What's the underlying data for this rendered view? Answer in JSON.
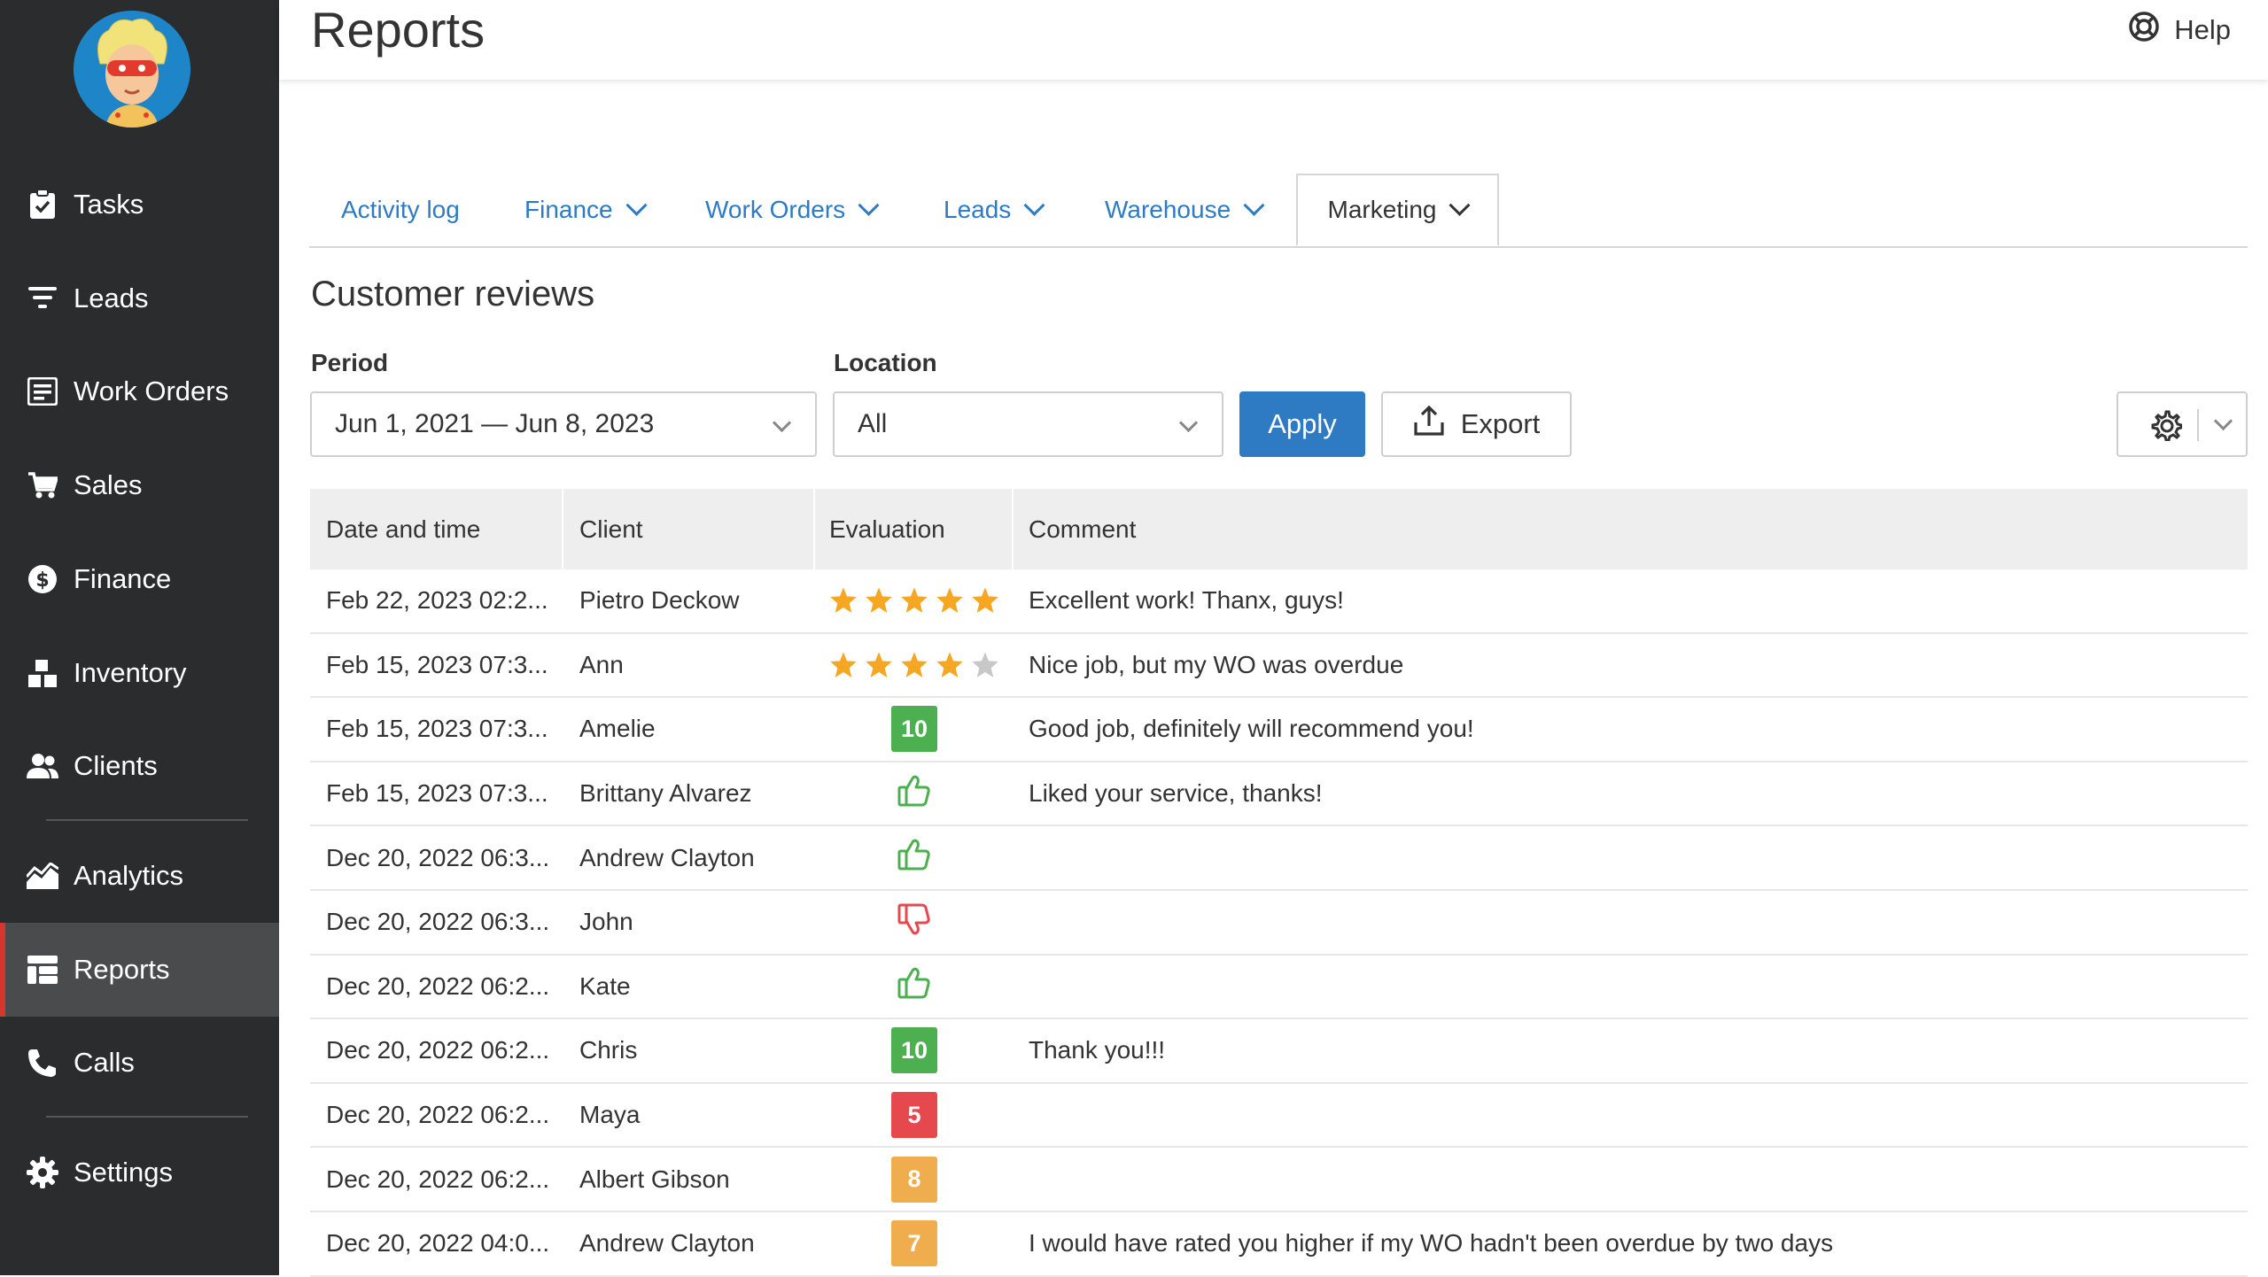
{
  "sidebar": {
    "items": [
      {
        "label": "Tasks",
        "icon": "clipboard-check-icon"
      },
      {
        "label": "Leads",
        "icon": "funnel-icon"
      },
      {
        "label": "Work Orders",
        "icon": "work-order-icon"
      },
      {
        "label": "Sales",
        "icon": "cart-icon"
      },
      {
        "label": "Finance",
        "icon": "dollar-icon"
      },
      {
        "label": "Inventory",
        "icon": "boxes-icon"
      },
      {
        "label": "Clients",
        "icon": "users-icon"
      },
      {
        "label": "Analytics",
        "icon": "chart-icon"
      },
      {
        "label": "Reports",
        "icon": "table-icon",
        "active": true
      },
      {
        "label": "Calls",
        "icon": "phone-icon"
      },
      {
        "label": "Settings",
        "icon": "gear-icon"
      }
    ]
  },
  "header": {
    "title": "Reports",
    "help_label": "Help",
    "help_icon": "lifebuoy-icon"
  },
  "tabs": [
    {
      "label": "Activity log",
      "dropdown": false
    },
    {
      "label": "Finance",
      "dropdown": true
    },
    {
      "label": "Work Orders",
      "dropdown": true
    },
    {
      "label": "Leads",
      "dropdown": true
    },
    {
      "label": "Warehouse",
      "dropdown": true
    },
    {
      "label": "Marketing",
      "dropdown": true,
      "active": true
    }
  ],
  "section": {
    "title": "Customer reviews"
  },
  "filters": {
    "period_label": "Period",
    "period_value": "Jun 1, 2021 — Jun 8, 2023",
    "location_label": "Location",
    "location_value": "All",
    "apply_label": "Apply",
    "export_label": "Export"
  },
  "colors": {
    "accent": "#2e7bc4",
    "score_green": "#4caf50",
    "score_red": "#e5484d",
    "score_orange": "#f0ad4e",
    "star": "#f5a623",
    "sidebar_bg": "#2b2c2e",
    "active_marker": "#d8352c"
  },
  "table": {
    "headers": [
      "Date and time",
      "Client",
      "Evaluation",
      "Comment"
    ],
    "rows": [
      {
        "date": "Feb 22, 2023 02:2...",
        "client": "Pietro Deckow",
        "eval_type": "stars",
        "eval_value": 5,
        "comment": "Excellent work! Thanx, guys!"
      },
      {
        "date": "Feb 15, 2023 07:3...",
        "client": "Ann",
        "eval_type": "stars",
        "eval_value": 4,
        "comment": "Nice job, but my WO was overdue"
      },
      {
        "date": "Feb 15, 2023 07:3...",
        "client": "Amelie",
        "eval_type": "score",
        "eval_value": "10",
        "eval_color": "#4caf50",
        "comment": "Good job, definitely will recommend you!"
      },
      {
        "date": "Feb 15, 2023 07:3...",
        "client": "Brittany Alvarez",
        "eval_type": "thumb",
        "eval_value": "up",
        "comment": "Liked your service, thanks!"
      },
      {
        "date": "Dec 20, 2022 06:3...",
        "client": "Andrew Clayton",
        "eval_type": "thumb",
        "eval_value": "up",
        "comment": ""
      },
      {
        "date": "Dec 20, 2022 06:3...",
        "client": "John",
        "eval_type": "thumb",
        "eval_value": "down",
        "comment": ""
      },
      {
        "date": "Dec 20, 2022 06:2...",
        "client": "Kate",
        "eval_type": "thumb",
        "eval_value": "up",
        "comment": ""
      },
      {
        "date": "Dec 20, 2022 06:2...",
        "client": "Chris",
        "eval_type": "score",
        "eval_value": "10",
        "eval_color": "#4caf50",
        "comment": "Thank you!!!"
      },
      {
        "date": "Dec 20, 2022 06:2...",
        "client": "Maya",
        "eval_type": "score",
        "eval_value": "5",
        "eval_color": "#e5484d",
        "comment": ""
      },
      {
        "date": "Dec 20, 2022 06:2...",
        "client": "Albert Gibson",
        "eval_type": "score",
        "eval_value": "8",
        "eval_color": "#f0ad4e",
        "comment": ""
      },
      {
        "date": "Dec 20, 2022 04:0...",
        "client": "Andrew Clayton",
        "eval_type": "score",
        "eval_value": "7",
        "eval_color": "#f0ad4e",
        "comment": "I would have rated you higher if my WO hadn't been overdue by two days"
      }
    ]
  }
}
